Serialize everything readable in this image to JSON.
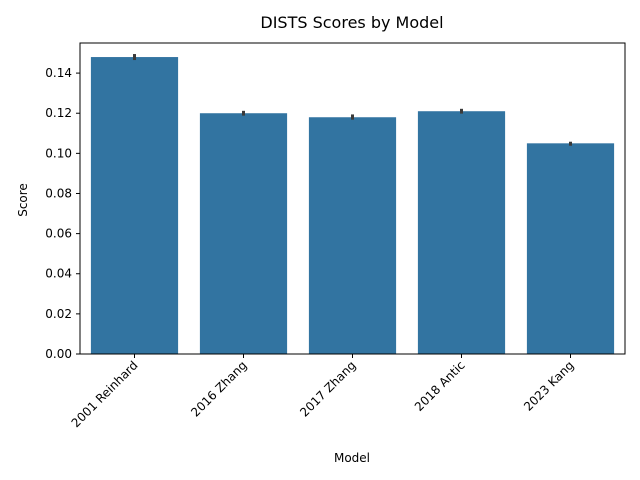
{
  "chart_data": {
    "type": "bar",
    "title": "DISTS Scores by Model",
    "xlabel": "Model",
    "ylabel": "Score",
    "categories": [
      "2001 Reinhard",
      "2016 Zhang",
      "2017 Zhang",
      "2018 Antic",
      "2023 Kang"
    ],
    "values": [
      0.148,
      0.12,
      0.118,
      0.121,
      0.105
    ],
    "error_low": [
      0.1465,
      0.1188,
      0.1168,
      0.1198,
      0.1038
    ],
    "error_high": [
      0.1495,
      0.1212,
      0.1194,
      0.1222,
      0.1058
    ],
    "ylim": [
      0,
      0.155
    ],
    "yticks": [
      0.0,
      0.02,
      0.04,
      0.06,
      0.08,
      0.1,
      0.12,
      0.14
    ],
    "ytick_labels": [
      "0.00",
      "0.02",
      "0.04",
      "0.06",
      "0.08",
      "0.10",
      "0.12",
      "0.14"
    ],
    "grid": false,
    "legend": "none",
    "colors": {
      "bar": "#3274a1",
      "error_bar": "#3a3a3a",
      "axis": "#000000"
    }
  }
}
